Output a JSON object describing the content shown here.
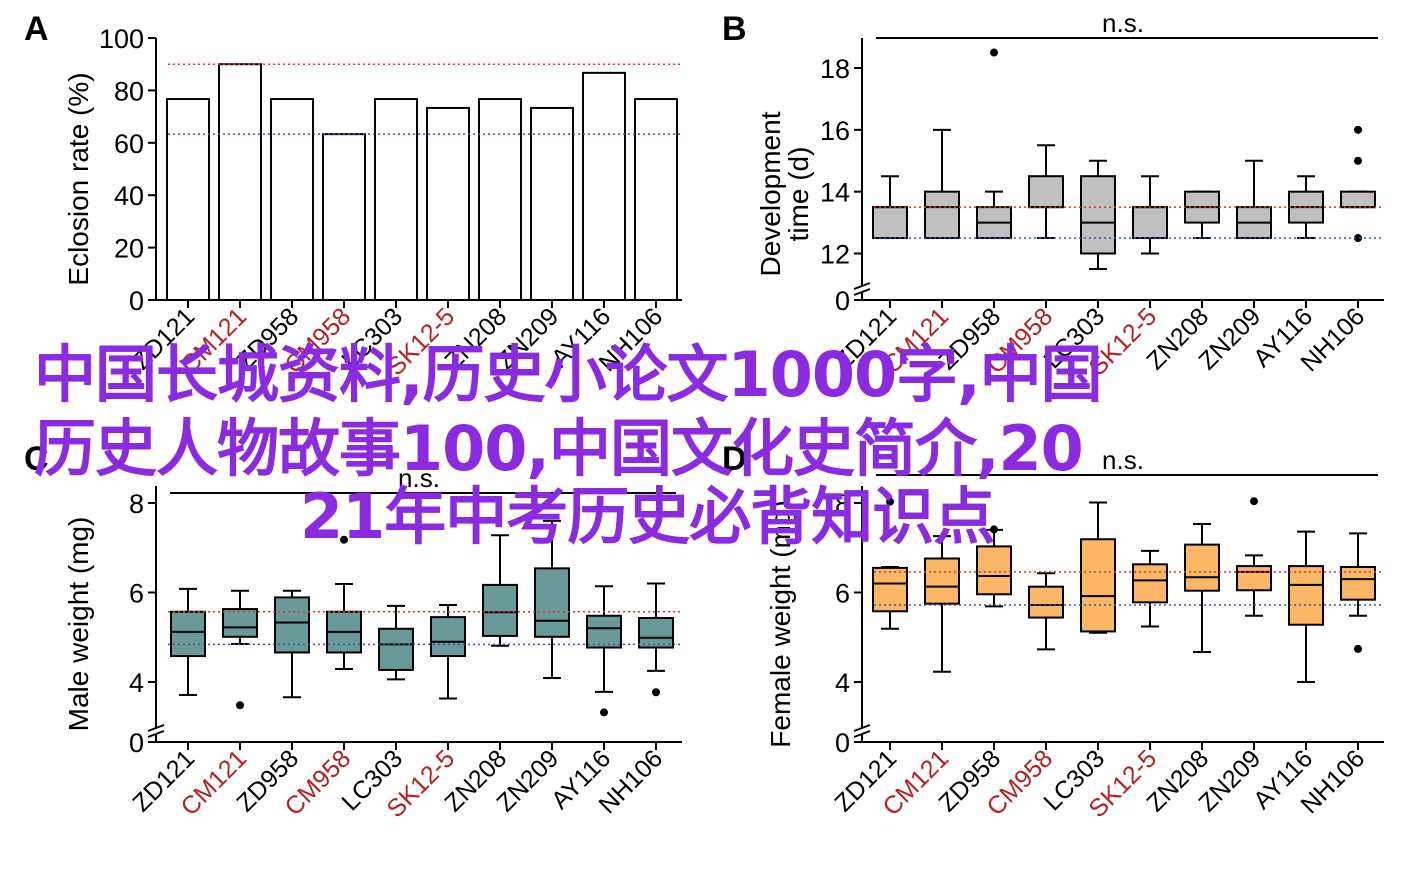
{
  "watermark": {
    "lines": [
      "中国长城资料,历史小论文1000字,中国",
      "历史人物故事100,中国文化史简介,20",
      "21年中考历史必背知识点"
    ],
    "color": "#8a2be2"
  },
  "colors": {
    "reference_high": "#e03030",
    "reference_low": "#3a55a0",
    "highlight_label": "#b22222",
    "default_label": "#000000",
    "bar_fill": "#ffffff",
    "dev_box_fill": "#c0c0c0",
    "male_box_fill": "#6a9a98",
    "female_box_fill": "#fbb765"
  },
  "chart_data": [
    {
      "panel": "A",
      "type": "bar",
      "title": "",
      "xlabel": "",
      "ylabel": "Eclosion rate (%)",
      "ylim": [
        0,
        100
      ],
      "yticks": [
        0,
        20,
        40,
        60,
        80,
        100
      ],
      "categories": [
        "ZD121",
        "CM121",
        "ZD958",
        "CM958",
        "LC303",
        "SK12-5",
        "ZN208",
        "ZN209",
        "AY116",
        "NH106"
      ],
      "highlighted_categories": [
        "CM121",
        "CM958",
        "SK12-5"
      ],
      "values": [
        76.7,
        90.0,
        76.7,
        63.3,
        76.7,
        73.3,
        76.7,
        73.3,
        86.7,
        76.7
      ],
      "reference_lines": {
        "high": 90.0,
        "low": 63.3
      },
      "annotation": "",
      "grid": false
    },
    {
      "panel": "B",
      "type": "box",
      "title": "",
      "xlabel": "",
      "ylabel": "Development time (d)",
      "ylim": [
        11,
        19
      ],
      "axis_break": true,
      "yticks": [
        0,
        12,
        14,
        16,
        18
      ],
      "categories": [
        "ZD121",
        "CM121",
        "ZD958",
        "CM958",
        "LC303",
        "SK12-5",
        "ZN208",
        "ZN209",
        "AY116",
        "NH106"
      ],
      "highlighted_categories": [
        "CM121",
        "CM958",
        "SK12-5"
      ],
      "series": [
        {
          "name": "ZD121",
          "min": 12.5,
          "q1": 12.5,
          "median": 13.5,
          "q3": 13.5,
          "max": 14.5,
          "outliers": []
        },
        {
          "name": "CM121",
          "min": 12.5,
          "q1": 12.5,
          "median": 13.5,
          "q3": 14.0,
          "max": 16.0,
          "outliers": []
        },
        {
          "name": "ZD958",
          "min": 12.5,
          "q1": 12.5,
          "median": 13.0,
          "q3": 13.5,
          "max": 14.0,
          "outliers": [
            18.5
          ]
        },
        {
          "name": "CM958",
          "min": 12.5,
          "q1": 13.5,
          "median": 13.5,
          "q3": 14.5,
          "max": 15.5,
          "outliers": []
        },
        {
          "name": "LC303",
          "min": 11.5,
          "q1": 12.0,
          "median": 13.0,
          "q3": 14.5,
          "max": 15.0,
          "outliers": []
        },
        {
          "name": "SK12-5",
          "min": 12.0,
          "q1": 12.5,
          "median": 13.5,
          "q3": 13.5,
          "max": 14.5,
          "outliers": []
        },
        {
          "name": "ZN208",
          "min": 12.5,
          "q1": 13.0,
          "median": 13.5,
          "q3": 14.0,
          "max": 14.0,
          "outliers": []
        },
        {
          "name": "ZN209",
          "min": 12.5,
          "q1": 12.5,
          "median": 13.0,
          "q3": 13.5,
          "max": 15.0,
          "outliers": []
        },
        {
          "name": "AY116",
          "min": 12.5,
          "q1": 13.0,
          "median": 13.5,
          "q3": 14.0,
          "max": 14.5,
          "outliers": []
        },
        {
          "name": "NH106",
          "min": 13.5,
          "q1": 13.5,
          "median": 13.5,
          "q3": 14.0,
          "max": 14.0,
          "outliers": [
            16.0,
            15.0,
            12.5
          ]
        }
      ],
      "reference_lines": {
        "high": 13.5,
        "low": 12.5
      },
      "annotation": "n.s.",
      "grid": false
    },
    {
      "panel": "C",
      "type": "box",
      "title": "",
      "xlabel": "",
      "ylabel": "Male weight (mg)",
      "ylim": [
        3,
        8.4
      ],
      "axis_break": true,
      "yticks": [
        0,
        4,
        6,
        8
      ],
      "categories": [
        "ZD121",
        "CM121",
        "ZD958",
        "CM958",
        "LC303",
        "SK12-5",
        "ZN208",
        "ZN209",
        "AY116",
        "NH106"
      ],
      "highlighted_categories": [
        "CM121",
        "CM958",
        "SK12-5"
      ],
      "series": [
        {
          "name": "ZD121",
          "min": 3.71,
          "q1": 4.58,
          "median": 5.12,
          "q3": 5.57,
          "max": 6.08,
          "outliers": []
        },
        {
          "name": "CM121",
          "min": 4.85,
          "q1": 5.01,
          "median": 5.22,
          "q3": 5.63,
          "max": 6.04,
          "outliers": [
            3.48
          ]
        },
        {
          "name": "ZD958",
          "min": 3.66,
          "q1": 4.66,
          "median": 5.33,
          "q3": 5.89,
          "max": 6.04,
          "outliers": []
        },
        {
          "name": "CM958",
          "min": 4.29,
          "q1": 4.66,
          "median": 5.12,
          "q3": 5.57,
          "max": 6.19,
          "outliers": [
            7.18
          ]
        },
        {
          "name": "LC303",
          "min": 4.06,
          "q1": 4.27,
          "median": 4.84,
          "q3": 5.19,
          "max": 5.7,
          "outliers": []
        },
        {
          "name": "SK12-5",
          "min": 3.63,
          "q1": 4.58,
          "median": 4.9,
          "q3": 5.45,
          "max": 5.72,
          "outliers": []
        },
        {
          "name": "ZN208",
          "min": 4.81,
          "q1": 5.03,
          "median": 5.56,
          "q3": 6.17,
          "max": 7.28,
          "outliers": []
        },
        {
          "name": "ZN209",
          "min": 4.09,
          "q1": 5.01,
          "median": 5.37,
          "q3": 6.54,
          "max": 7.6,
          "outliers": []
        },
        {
          "name": "AY116",
          "min": 3.78,
          "q1": 4.77,
          "median": 5.2,
          "q3": 5.48,
          "max": 6.14,
          "outliers": [
            3.32
          ]
        },
        {
          "name": "NH106",
          "min": 4.25,
          "q1": 4.77,
          "median": 4.99,
          "q3": 5.43,
          "max": 6.2,
          "outliers": [
            3.77
          ]
        }
      ],
      "reference_lines": {
        "high": 5.57,
        "low": 4.84
      },
      "annotation": "n.s.",
      "grid": false
    },
    {
      "panel": "D",
      "type": "box",
      "title": "",
      "xlabel": "",
      "ylabel": "Female weight (mg)",
      "ylim": [
        3,
        8.4
      ],
      "axis_break": true,
      "yticks": [
        0,
        4,
        6,
        8
      ],
      "categories": [
        "ZD121",
        "CM121",
        "ZD958",
        "CM958",
        "LC303",
        "SK12-5",
        "ZN208",
        "ZN209",
        "AY116",
        "NH106"
      ],
      "highlighted_categories": [
        "CM121",
        "CM958",
        "SK12-5"
      ],
      "series": [
        {
          "name": "ZD121",
          "min": 5.19,
          "q1": 5.58,
          "median": 6.2,
          "q3": 6.55,
          "max": 6.57,
          "outliers": [
            8.03
          ]
        },
        {
          "name": "CM121",
          "min": 4.23,
          "q1": 5.75,
          "median": 6.13,
          "q3": 6.76,
          "max": 7.26,
          "outliers": []
        },
        {
          "name": "ZD958",
          "min": 5.69,
          "q1": 5.96,
          "median": 6.37,
          "q3": 7.03,
          "max": 7.4,
          "outliers": [
            7.41
          ]
        },
        {
          "name": "CM958",
          "min": 4.73,
          "q1": 5.44,
          "median": 5.72,
          "q3": 6.13,
          "max": 6.43,
          "outliers": []
        },
        {
          "name": "LC303",
          "min": 5.1,
          "q1": 5.13,
          "median": 5.92,
          "q3": 7.19,
          "max": 8.01,
          "outliers": []
        },
        {
          "name": "SK12-5",
          "min": 5.24,
          "q1": 5.78,
          "median": 6.27,
          "q3": 6.63,
          "max": 6.93,
          "outliers": []
        },
        {
          "name": "ZN208",
          "min": 4.67,
          "q1": 6.04,
          "median": 6.34,
          "q3": 7.07,
          "max": 7.53,
          "outliers": []
        },
        {
          "name": "ZN209",
          "min": 5.48,
          "q1": 6.05,
          "median": 6.46,
          "q3": 6.59,
          "max": 6.83,
          "outliers": [
            8.04
          ]
        },
        {
          "name": "AY116",
          "min": 4.0,
          "q1": 5.28,
          "median": 6.17,
          "q3": 6.59,
          "max": 7.36,
          "outliers": []
        },
        {
          "name": "NH106",
          "min": 5.48,
          "q1": 5.84,
          "median": 6.3,
          "q3": 6.57,
          "max": 7.32,
          "outliers": [
            4.74
          ]
        }
      ],
      "reference_lines": {
        "high": 6.46,
        "low": 5.72
      },
      "annotation": "n.s.",
      "grid": false
    }
  ]
}
